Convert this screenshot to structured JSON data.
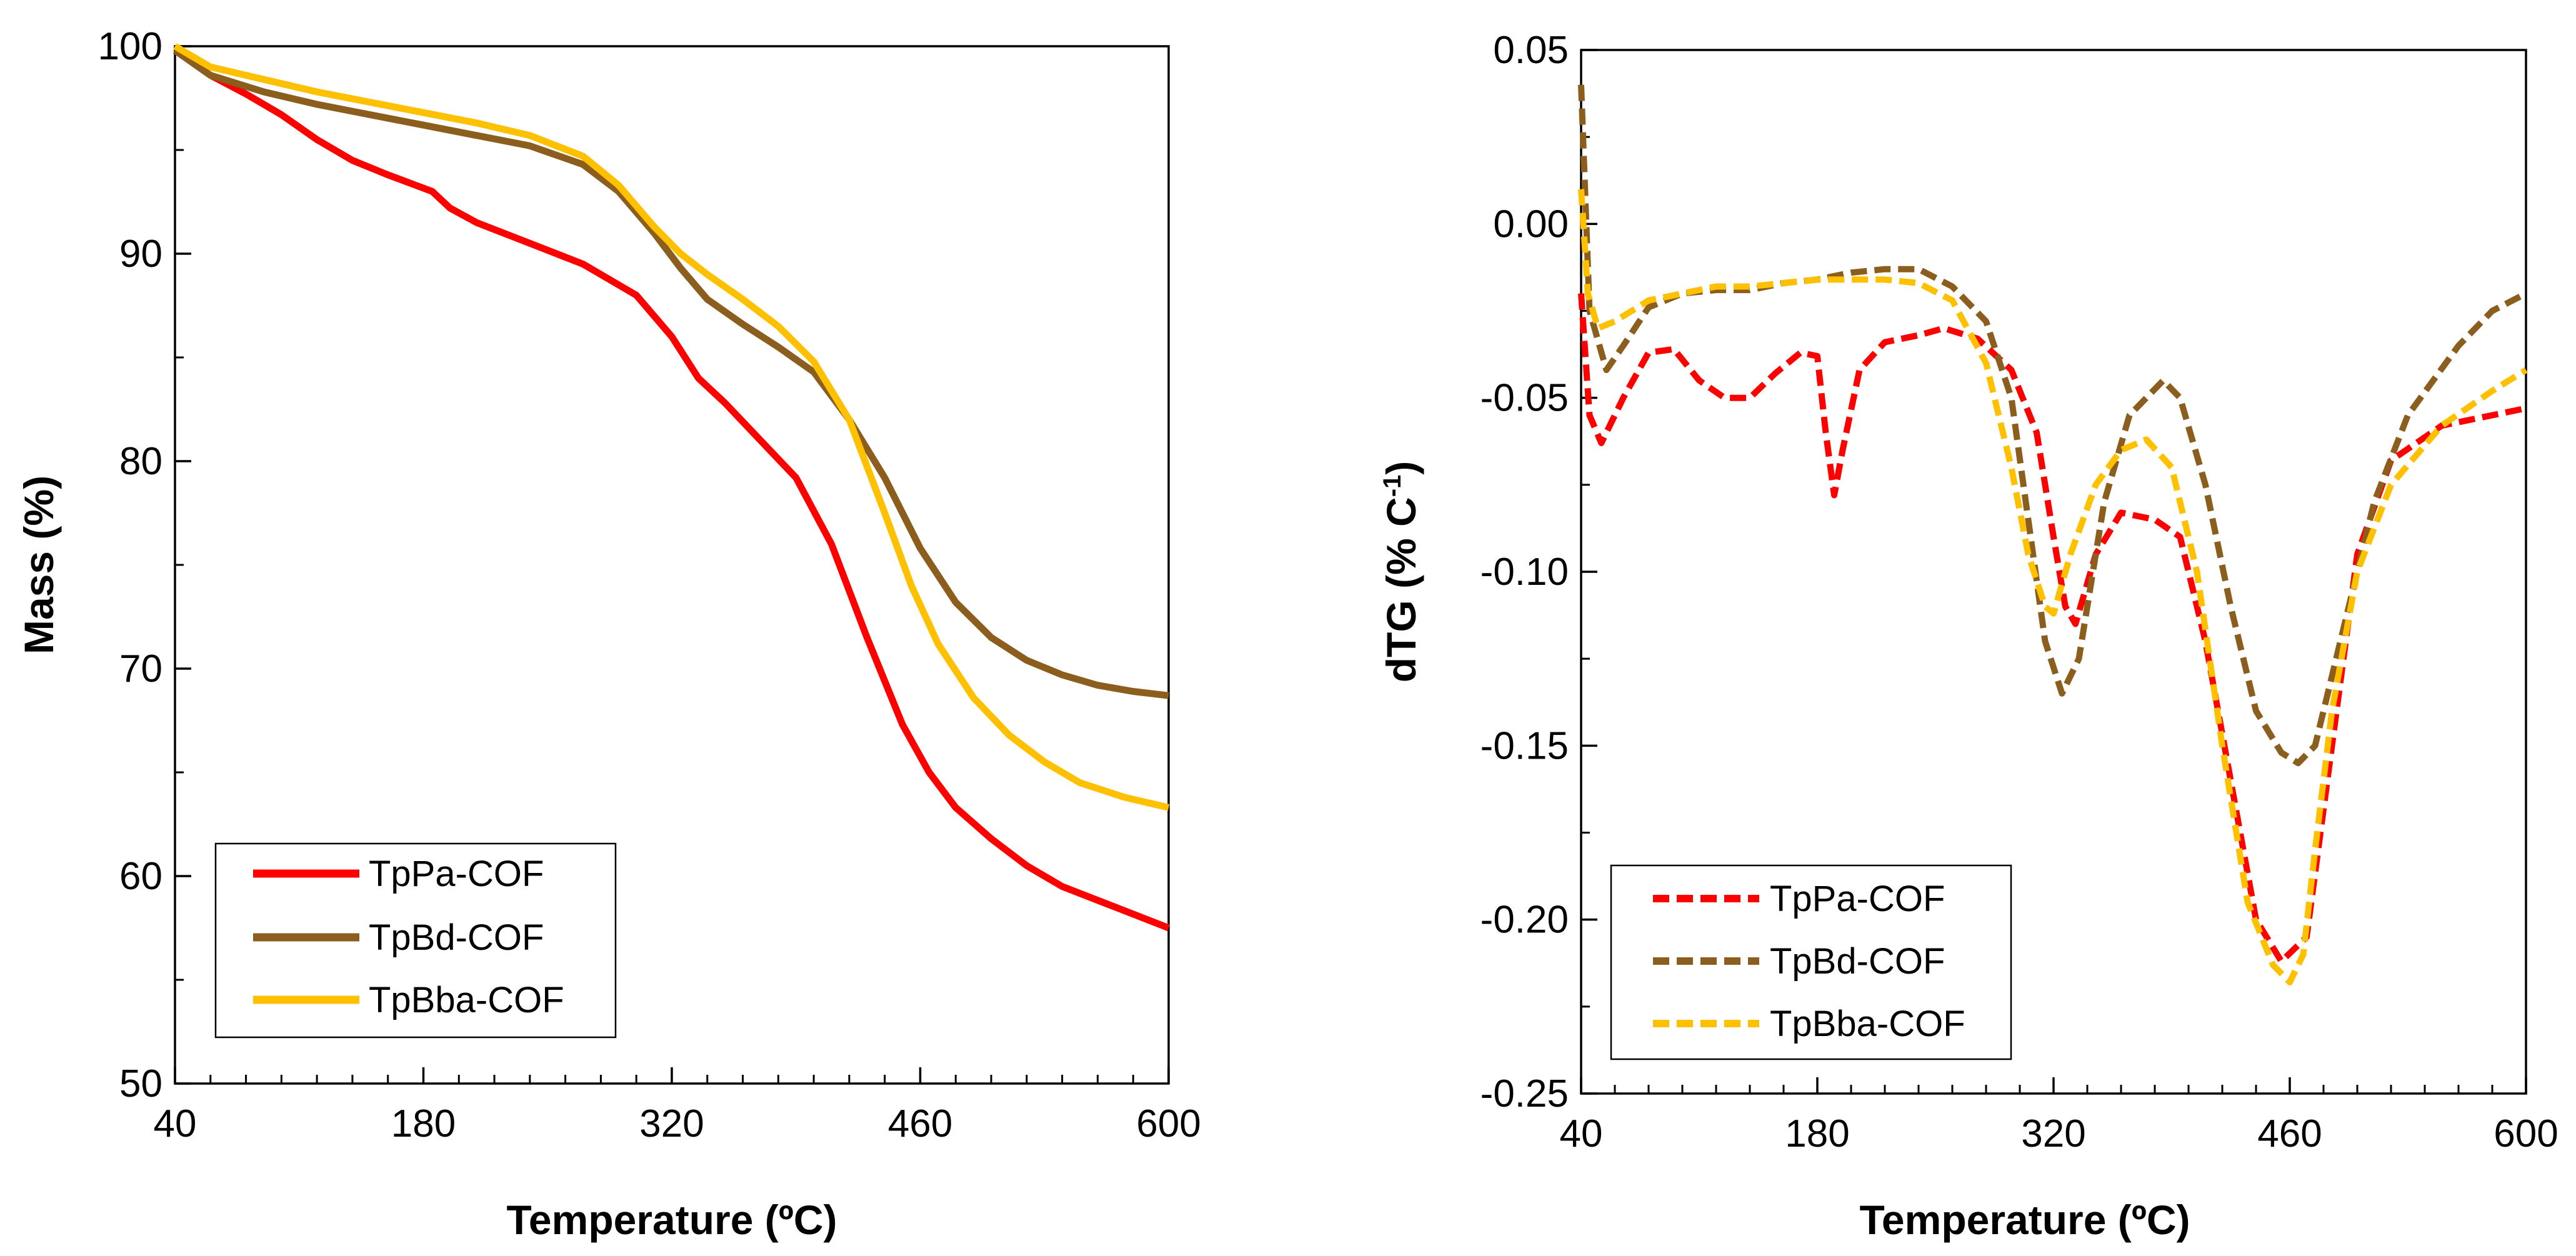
{
  "chart_data": [
    {
      "type": "line",
      "title": "",
      "xlabel": "Temperature (ºC)",
      "ylabel": "Mass (%)",
      "xlim": [
        40,
        600
      ],
      "ylim": [
        50,
        100
      ],
      "x_ticks": [
        "40",
        "180",
        "320",
        "460",
        "600"
      ],
      "y_ticks": [
        "50",
        "60",
        "70",
        "80",
        "90",
        "100"
      ],
      "grid": false,
      "legend_position": "bottom-left",
      "series": [
        {
          "name": "TpPa-COF",
          "color": "#ff0000",
          "style": "solid",
          "x": [
            40,
            60,
            80,
            100,
            120,
            140,
            160,
            185,
            195,
            210,
            240,
            270,
            300,
            320,
            335,
            350,
            370,
            390,
            410,
            430,
            450,
            465,
            480,
            500,
            520,
            540,
            570,
            600
          ],
          "y": [
            99.8,
            98.6,
            97.7,
            96.7,
            95.5,
            94.5,
            93.8,
            93.0,
            92.2,
            91.5,
            90.5,
            89.5,
            88.0,
            86.0,
            84.0,
            82.8,
            81.0,
            79.2,
            76.0,
            71.5,
            67.3,
            65.0,
            63.3,
            61.8,
            60.5,
            59.5,
            58.5,
            57.5
          ]
        },
        {
          "name": "TpBd-COF",
          "color": "#8c5e1e",
          "style": "solid",
          "x": [
            40,
            60,
            90,
            120,
            150,
            180,
            210,
            240,
            270,
            290,
            310,
            325,
            340,
            360,
            380,
            400,
            420,
            440,
            460,
            480,
            500,
            520,
            540,
            560,
            580,
            600
          ],
          "y": [
            99.8,
            98.6,
            97.8,
            97.2,
            96.7,
            96.2,
            95.7,
            95.2,
            94.3,
            93.0,
            91.0,
            89.3,
            87.8,
            86.6,
            85.5,
            84.3,
            82.0,
            79.2,
            75.8,
            73.2,
            71.5,
            70.4,
            69.7,
            69.2,
            68.9,
            68.7
          ]
        },
        {
          "name": "TpBba-COF",
          "color": "#ffc000",
          "style": "solid",
          "x": [
            40,
            60,
            90,
            120,
            150,
            180,
            210,
            240,
            270,
            290,
            310,
            325,
            340,
            360,
            380,
            400,
            420,
            440,
            455,
            470,
            490,
            510,
            530,
            550,
            575,
            600
          ],
          "y": [
            100.0,
            99.0,
            98.4,
            97.8,
            97.3,
            96.8,
            96.3,
            95.7,
            94.7,
            93.3,
            91.3,
            90.0,
            89.0,
            87.8,
            86.5,
            84.8,
            82.0,
            77.5,
            74.0,
            71.2,
            68.6,
            66.8,
            65.5,
            64.5,
            63.8,
            63.3
          ]
        }
      ]
    },
    {
      "type": "line",
      "title": "",
      "xlabel": "Temperature (ºC)",
      "ylabel": "dTG (% C",
      "ylabel_sup": "-1",
      "ylabel_end": ")",
      "xlim": [
        40,
        600
      ],
      "ylim": [
        -0.25,
        0.05
      ],
      "x_ticks": [
        "40",
        "180",
        "320",
        "460",
        "600"
      ],
      "y_ticks": [
        "-0.25",
        "-0.20",
        "-0.15",
        "-0.10",
        "-0.05",
        "0.00",
        "0.05"
      ],
      "grid": false,
      "legend_position": "bottom-left",
      "series": [
        {
          "name": "TpPa-COF",
          "color": "#ff0000",
          "style": "dashed",
          "x": [
            40,
            45,
            52,
            65,
            80,
            95,
            110,
            125,
            140,
            155,
            170,
            180,
            185,
            190,
            195,
            205,
            220,
            240,
            255,
            275,
            295,
            310,
            320,
            327,
            333,
            345,
            360,
            380,
            395,
            410,
            425,
            440,
            455,
            470,
            485,
            500,
            520,
            550,
            580,
            600
          ],
          "y": [
            -0.02,
            -0.055,
            -0.063,
            -0.05,
            -0.037,
            -0.036,
            -0.045,
            -0.05,
            -0.05,
            -0.043,
            -0.037,
            -0.038,
            -0.06,
            -0.078,
            -0.065,
            -0.042,
            -0.034,
            -0.032,
            -0.03,
            -0.033,
            -0.042,
            -0.06,
            -0.09,
            -0.11,
            -0.115,
            -0.095,
            -0.083,
            -0.085,
            -0.09,
            -0.12,
            -0.16,
            -0.2,
            -0.212,
            -0.205,
            -0.15,
            -0.095,
            -0.068,
            -0.058,
            -0.055,
            -0.053
          ]
        },
        {
          "name": "TpBd-COF",
          "color": "#8c5e1e",
          "style": "dashed",
          "x": [
            40,
            45,
            55,
            65,
            80,
            100,
            120,
            140,
            160,
            180,
            200,
            220,
            240,
            260,
            280,
            295,
            305,
            315,
            325,
            335,
            350,
            365,
            385,
            395,
            410,
            425,
            440,
            455,
            465,
            475,
            490,
            510,
            530,
            560,
            580,
            600
          ],
          "y": [
            0.04,
            -0.025,
            -0.042,
            -0.035,
            -0.024,
            -0.02,
            -0.019,
            -0.019,
            -0.017,
            -0.016,
            -0.014,
            -0.013,
            -0.013,
            -0.018,
            -0.028,
            -0.05,
            -0.085,
            -0.12,
            -0.135,
            -0.125,
            -0.08,
            -0.055,
            -0.045,
            -0.05,
            -0.075,
            -0.11,
            -0.14,
            -0.152,
            -0.155,
            -0.15,
            -0.12,
            -0.08,
            -0.055,
            -0.035,
            -0.025,
            -0.02
          ]
        },
        {
          "name": "TpBba-COF",
          "color": "#ffc000",
          "style": "dashed",
          "x": [
            40,
            44,
            50,
            60,
            80,
            100,
            120,
            140,
            160,
            180,
            200,
            220,
            240,
            260,
            280,
            295,
            305,
            315,
            320,
            330,
            345,
            360,
            375,
            390,
            405,
            420,
            435,
            450,
            460,
            468,
            475,
            485,
            500,
            520,
            550,
            580,
            600
          ],
          "y": [
            0.01,
            -0.02,
            -0.03,
            -0.028,
            -0.022,
            -0.02,
            -0.018,
            -0.018,
            -0.017,
            -0.016,
            -0.016,
            -0.016,
            -0.017,
            -0.022,
            -0.04,
            -0.07,
            -0.095,
            -0.11,
            -0.112,
            -0.095,
            -0.075,
            -0.065,
            -0.062,
            -0.07,
            -0.1,
            -0.15,
            -0.195,
            -0.213,
            -0.218,
            -0.21,
            -0.18,
            -0.14,
            -0.1,
            -0.075,
            -0.058,
            -0.048,
            -0.042
          ]
        }
      ]
    }
  ]
}
